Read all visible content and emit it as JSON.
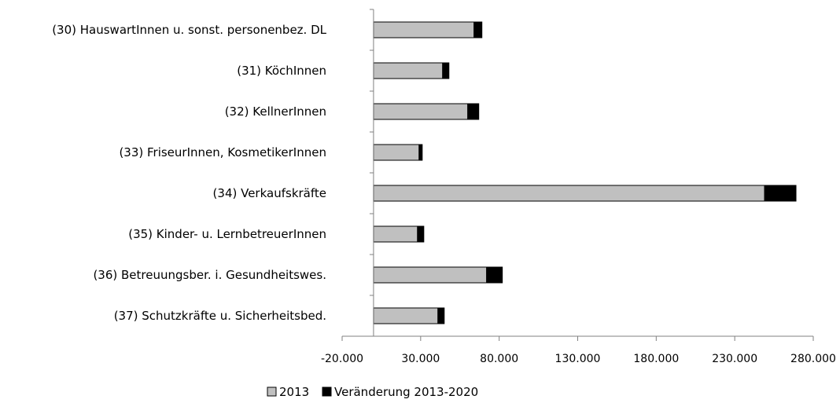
{
  "chart_data": {
    "type": "bar",
    "orientation": "horizontal",
    "stacked": true,
    "categories": [
      "(30) HauswartInnen u. sonst. personenbez. DL",
      "(31) KöchInnen",
      "(32) KellnerInnen",
      "(33) FriseurInnen, KosmetikerInnen",
      "(34) Verkaufskräfte",
      "(35) Kinder- u. LernbetreuerInnen",
      "(36) Betreuungsber. i. Gesundheitswes.",
      "(37) Schutzkräfte u. Sicherheitsbed."
    ],
    "series": [
      {
        "name": "2013",
        "color": "#c0c0c0",
        "values": [
          64000,
          44000,
          60000,
          29000,
          249000,
          28000,
          72000,
          41000
        ]
      },
      {
        "name": "Veränderung 2013-2020",
        "color": "#000000",
        "values": [
          5000,
          4000,
          7000,
          2000,
          20000,
          4000,
          10000,
          4000
        ]
      }
    ],
    "xlim": [
      -20000,
      280000
    ],
    "x_ticks": [
      "-20.000",
      "30.000",
      "80.000",
      "130.000",
      "180.000",
      "230.000",
      "280.000"
    ],
    "x_tick_values": [
      -20000,
      30000,
      80000,
      130000,
      180000,
      230000,
      280000
    ],
    "grid": false,
    "legend_position": "bottom-left"
  }
}
